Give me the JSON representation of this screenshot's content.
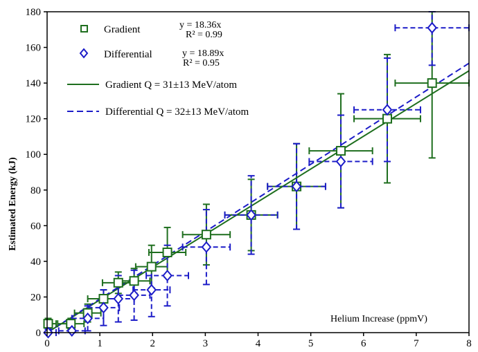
{
  "chart_data": {
    "type": "scatter",
    "xlabel": "Helium Increase (ppmV)",
    "ylabel": "Estimated Energy (kJ)",
    "xlim": [
      0,
      8
    ],
    "ylim": [
      0,
      180
    ],
    "x_ticks": [
      "0",
      "1",
      "2",
      "3",
      "4",
      "5",
      "6",
      "7",
      "8"
    ],
    "y_ticks": [
      "0",
      "20",
      "40",
      "60",
      "80",
      "100",
      "120",
      "140",
      "160",
      "180"
    ],
    "grid": false,
    "legend_position": "top-left",
    "legend": {
      "gradient": "Gradient",
      "differential": "Differential",
      "gradient_fit": "Gradient Q = 31±13 MeV/atom",
      "differential_fit": "Differential Q = 32±13 MeV/atom"
    },
    "annotations": {
      "gradient_eq": "y = 18.36x",
      "gradient_r2": "R² = 0.99",
      "differential_eq": "y = 18.89x",
      "differential_r2": "R² = 0.95"
    },
    "colors": {
      "gradient": "#1e6e1e",
      "differential": "#1c1cc8"
    },
    "fit_lines": [
      {
        "series": "gradient",
        "slope": 18.36,
        "style": "solid"
      },
      {
        "series": "differential",
        "slope": 18.89,
        "style": "dashed"
      }
    ],
    "series": [
      {
        "name": "Gradient",
        "marker": "square",
        "points": [
          {
            "x": 0.02,
            "y": 5,
            "xerr": 0.15,
            "yerr": 3
          },
          {
            "x": 0.45,
            "y": 5,
            "xerr": 0.25,
            "yerr": 3
          },
          {
            "x": 0.77,
            "y": 11,
            "xerr": 0.25,
            "yerr": 5
          },
          {
            "x": 1.07,
            "y": 19,
            "xerr": 0.3,
            "yerr": 5
          },
          {
            "x": 1.35,
            "y": 28,
            "xerr": 0.3,
            "yerr": 6
          },
          {
            "x": 1.65,
            "y": 29,
            "xerr": 0.3,
            "yerr": 7
          },
          {
            "x": 1.98,
            "y": 37,
            "xerr": 0.3,
            "yerr": 12
          },
          {
            "x": 2.28,
            "y": 45,
            "xerr": 0.35,
            "yerr": 14
          },
          {
            "x": 3.02,
            "y": 55,
            "xerr": 0.45,
            "yerr": 17
          },
          {
            "x": 3.87,
            "y": 66,
            "xerr": 0.5,
            "yerr": 20
          },
          {
            "x": 4.73,
            "y": 82,
            "xerr": 0.55,
            "yerr": 24
          },
          {
            "x": 5.57,
            "y": 102,
            "xerr": 0.6,
            "yerr": 32
          },
          {
            "x": 6.45,
            "y": 120,
            "xerr": 0.63,
            "yerr": 36
          },
          {
            "x": 7.3,
            "y": 140,
            "xerr": 0.7,
            "yerr": 42
          }
        ]
      },
      {
        "name": "Differential",
        "marker": "diamond",
        "points": [
          {
            "x": 0.02,
            "y": 0,
            "xerr": 0.15,
            "yerr": 2
          },
          {
            "x": 0.47,
            "y": 1,
            "xerr": 0.25,
            "yerr": 3
          },
          {
            "x": 0.77,
            "y": 8,
            "xerr": 0.3,
            "yerr": 7
          },
          {
            "x": 1.07,
            "y": 14,
            "xerr": 0.3,
            "yerr": 10
          },
          {
            "x": 1.35,
            "y": 19,
            "xerr": 0.3,
            "yerr": 13
          },
          {
            "x": 1.65,
            "y": 21,
            "xerr": 0.3,
            "yerr": 14
          },
          {
            "x": 1.98,
            "y": 24,
            "xerr": 0.35,
            "yerr": 15
          },
          {
            "x": 2.28,
            "y": 32,
            "xerr": 0.4,
            "yerr": 17
          },
          {
            "x": 3.02,
            "y": 48,
            "xerr": 0.45,
            "yerr": 21
          },
          {
            "x": 3.87,
            "y": 66,
            "xerr": 0.5,
            "yerr": 22
          },
          {
            "x": 4.73,
            "y": 82,
            "xerr": 0.55,
            "yerr": 24
          },
          {
            "x": 5.57,
            "y": 96,
            "xerr": 0.6,
            "yerr": 26
          },
          {
            "x": 6.45,
            "y": 125,
            "xerr": 0.63,
            "yerr": 29
          },
          {
            "x": 7.3,
            "y": 171,
            "xerr": 0.7,
            "yerr": 21
          }
        ]
      }
    ]
  }
}
